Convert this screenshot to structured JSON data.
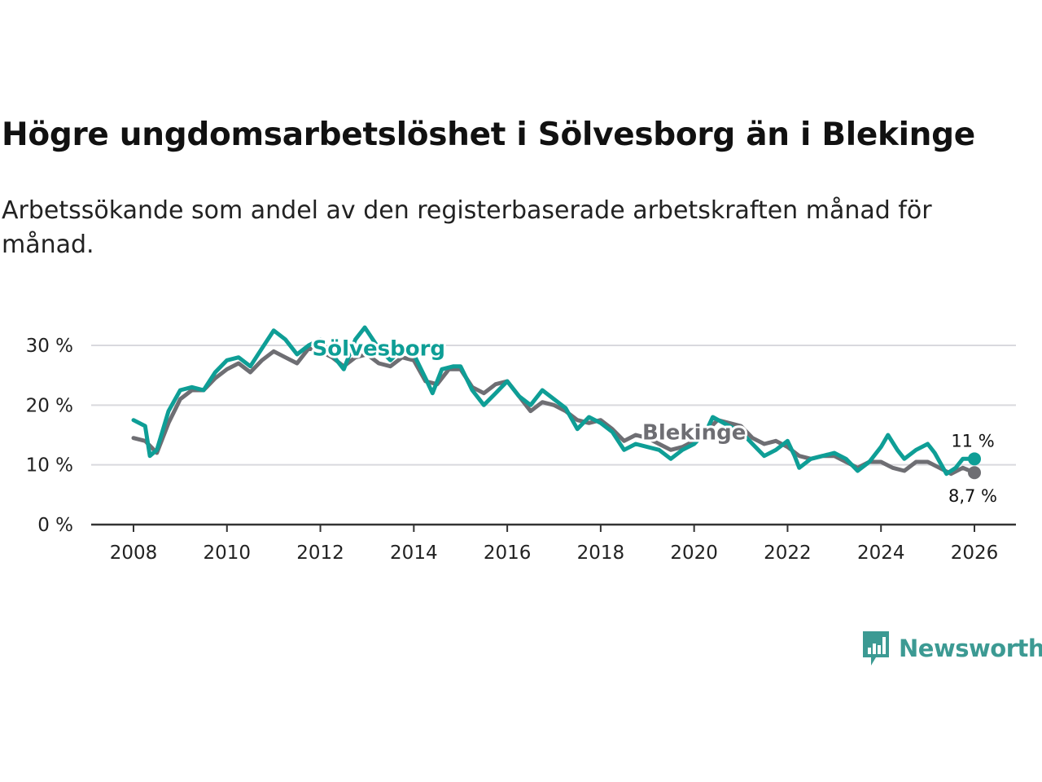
{
  "title": "Högre ungdomsarbetslöshet i Sölvesborg än i Blekinge",
  "subtitle": "Arbetssökande som andel av den registerbaserade arbetskraften månad för månad.",
  "logo": {
    "text": "Newsworthy",
    "icon": "newsworthy-chart-icon",
    "color": "#3c9a93"
  },
  "chart_data": {
    "type": "line",
    "title": "Högre ungdomsarbetslöshet i Sölvesborg än i Blekinge",
    "xlabel": "",
    "ylabel": "",
    "xlim": [
      2007.75,
      2026.9
    ],
    "ylim": [
      0,
      30
    ],
    "grid": true,
    "y_ticks": [
      {
        "value": 0,
        "label": "0 %"
      },
      {
        "value": 10,
        "label": "10 %"
      },
      {
        "value": 20,
        "label": "20 %"
      },
      {
        "value": 30,
        "label": "30 %"
      }
    ],
    "x_ticks": [
      {
        "value": 2008,
        "label": "2008"
      },
      {
        "value": 2010,
        "label": "2010"
      },
      {
        "value": 2012,
        "label": "2012"
      },
      {
        "value": 2014,
        "label": "2014"
      },
      {
        "value": 2016,
        "label": "2016"
      },
      {
        "value": 2018,
        "label": "2018"
      },
      {
        "value": 2020,
        "label": "2020"
      },
      {
        "value": 2022,
        "label": "2022"
      },
      {
        "value": 2024,
        "label": "2024"
      },
      {
        "value": 2026,
        "label": "2026"
      }
    ],
    "series": [
      {
        "name": "Blekinge",
        "label": "Blekinge",
        "color": "#6e6e73",
        "end_label": "8,7 %",
        "points": [
          [
            2008.0,
            14.5
          ],
          [
            2008.25,
            14.0
          ],
          [
            2008.5,
            12.0
          ],
          [
            2008.75,
            17.0
          ],
          [
            2009.0,
            21.0
          ],
          [
            2009.25,
            22.5
          ],
          [
            2009.5,
            22.5
          ],
          [
            2009.75,
            24.5
          ],
          [
            2010.0,
            26.0
          ],
          [
            2010.25,
            27.0
          ],
          [
            2010.5,
            25.5
          ],
          [
            2010.75,
            27.5
          ],
          [
            2011.0,
            29.0
          ],
          [
            2011.25,
            28.0
          ],
          [
            2011.5,
            27.0
          ],
          [
            2011.75,
            29.5
          ],
          [
            2012.0,
            29.0
          ],
          [
            2012.25,
            28.0
          ],
          [
            2012.5,
            26.5
          ],
          [
            2012.75,
            28.0
          ],
          [
            2013.0,
            28.5
          ],
          [
            2013.25,
            27.0
          ],
          [
            2013.5,
            26.5
          ],
          [
            2013.75,
            28.0
          ],
          [
            2014.0,
            27.5
          ],
          [
            2014.25,
            24.0
          ],
          [
            2014.5,
            23.5
          ],
          [
            2014.75,
            26.0
          ],
          [
            2015.0,
            26.0
          ],
          [
            2015.25,
            23.0
          ],
          [
            2015.5,
            22.0
          ],
          [
            2015.75,
            23.5
          ],
          [
            2016.0,
            24.0
          ],
          [
            2016.25,
            21.5
          ],
          [
            2016.5,
            19.0
          ],
          [
            2016.75,
            20.5
          ],
          [
            2017.0,
            20.0
          ],
          [
            2017.25,
            19.0
          ],
          [
            2017.5,
            17.5
          ],
          [
            2017.75,
            17.0
          ],
          [
            2018.0,
            17.5
          ],
          [
            2018.25,
            16.0
          ],
          [
            2018.5,
            14.0
          ],
          [
            2018.75,
            15.0
          ],
          [
            2019.0,
            14.5
          ],
          [
            2019.25,
            13.5
          ],
          [
            2019.5,
            12.5
          ],
          [
            2019.75,
            13.0
          ],
          [
            2020.0,
            14.0
          ],
          [
            2020.25,
            15.5
          ],
          [
            2020.5,
            17.5
          ],
          [
            2020.75,
            17.0
          ],
          [
            2021.0,
            16.5
          ],
          [
            2021.25,
            14.5
          ],
          [
            2021.5,
            13.5
          ],
          [
            2021.75,
            14.0
          ],
          [
            2022.0,
            13.0
          ],
          [
            2022.25,
            11.5
          ],
          [
            2022.5,
            11.0
          ],
          [
            2022.75,
            11.5
          ],
          [
            2023.0,
            11.5
          ],
          [
            2023.25,
            10.5
          ],
          [
            2023.5,
            9.5
          ],
          [
            2023.75,
            10.5
          ],
          [
            2024.0,
            10.5
          ],
          [
            2024.25,
            9.5
          ],
          [
            2024.5,
            9.0
          ],
          [
            2024.75,
            10.5
          ],
          [
            2025.0,
            10.5
          ],
          [
            2025.25,
            9.5
          ],
          [
            2025.5,
            8.5
          ],
          [
            2025.75,
            9.5
          ],
          [
            2026.0,
            8.7
          ]
        ]
      },
      {
        "name": "Sölvesborg",
        "label": "Sölvesborg",
        "color": "#0e9e96",
        "end_label": "11 %",
        "points": [
          [
            2008.0,
            17.5
          ],
          [
            2008.25,
            16.5
          ],
          [
            2008.35,
            11.5
          ],
          [
            2008.5,
            12.5
          ],
          [
            2008.75,
            19.0
          ],
          [
            2009.0,
            22.5
          ],
          [
            2009.25,
            23.0
          ],
          [
            2009.5,
            22.5
          ],
          [
            2009.75,
            25.5
          ],
          [
            2010.0,
            27.5
          ],
          [
            2010.25,
            28.0
          ],
          [
            2010.5,
            26.5
          ],
          [
            2010.75,
            29.5
          ],
          [
            2011.0,
            32.5
          ],
          [
            2011.25,
            31.0
          ],
          [
            2011.5,
            28.5
          ],
          [
            2011.75,
            30.0
          ],
          [
            2012.0,
            31.0
          ],
          [
            2012.25,
            28.5
          ],
          [
            2012.5,
            26.0
          ],
          [
            2012.75,
            31.0
          ],
          [
            2012.95,
            33.0
          ],
          [
            2013.25,
            29.5
          ],
          [
            2013.5,
            27.5
          ],
          [
            2013.75,
            29.5
          ],
          [
            2014.0,
            28.5
          ],
          [
            2014.25,
            24.5
          ],
          [
            2014.4,
            22.0
          ],
          [
            2014.6,
            26.0
          ],
          [
            2014.85,
            26.5
          ],
          [
            2015.0,
            26.5
          ],
          [
            2015.25,
            22.5
          ],
          [
            2015.5,
            20.0
          ],
          [
            2015.75,
            22.0
          ],
          [
            2016.0,
            24.0
          ],
          [
            2016.25,
            21.5
          ],
          [
            2016.5,
            20.0
          ],
          [
            2016.75,
            22.5
          ],
          [
            2017.0,
            21.0
          ],
          [
            2017.25,
            19.5
          ],
          [
            2017.5,
            16.0
          ],
          [
            2017.75,
            18.0
          ],
          [
            2018.0,
            17.0
          ],
          [
            2018.25,
            15.5
          ],
          [
            2018.5,
            12.5
          ],
          [
            2018.75,
            13.5
          ],
          [
            2019.0,
            13.0
          ],
          [
            2019.25,
            12.5
          ],
          [
            2019.5,
            11.0
          ],
          [
            2019.75,
            12.5
          ],
          [
            2020.0,
            13.5
          ],
          [
            2020.25,
            15.5
          ],
          [
            2020.4,
            18.0
          ],
          [
            2020.75,
            16.5
          ],
          [
            2021.0,
            15.5
          ],
          [
            2021.25,
            13.5
          ],
          [
            2021.5,
            11.5
          ],
          [
            2021.75,
            12.5
          ],
          [
            2022.0,
            14.0
          ],
          [
            2022.15,
            11.5
          ],
          [
            2022.25,
            9.5
          ],
          [
            2022.5,
            11.0
          ],
          [
            2022.75,
            11.5
          ],
          [
            2023.0,
            12.0
          ],
          [
            2023.25,
            11.0
          ],
          [
            2023.5,
            9.0
          ],
          [
            2023.75,
            10.5
          ],
          [
            2024.0,
            13.0
          ],
          [
            2024.15,
            15.0
          ],
          [
            2024.35,
            12.5
          ],
          [
            2024.5,
            11.0
          ],
          [
            2024.75,
            12.5
          ],
          [
            2025.0,
            13.5
          ],
          [
            2025.15,
            12.0
          ],
          [
            2025.4,
            8.5
          ],
          [
            2025.6,
            9.5
          ],
          [
            2025.75,
            11.0
          ],
          [
            2026.0,
            11.0
          ]
        ]
      }
    ],
    "annotations": [
      {
        "text": "Sölvesborg",
        "series": "Sölvesborg",
        "x": 2013.25,
        "y": 29.5
      },
      {
        "text": "Blekinge",
        "series": "Blekinge",
        "x": 2020.0,
        "y": 15.5
      }
    ]
  }
}
